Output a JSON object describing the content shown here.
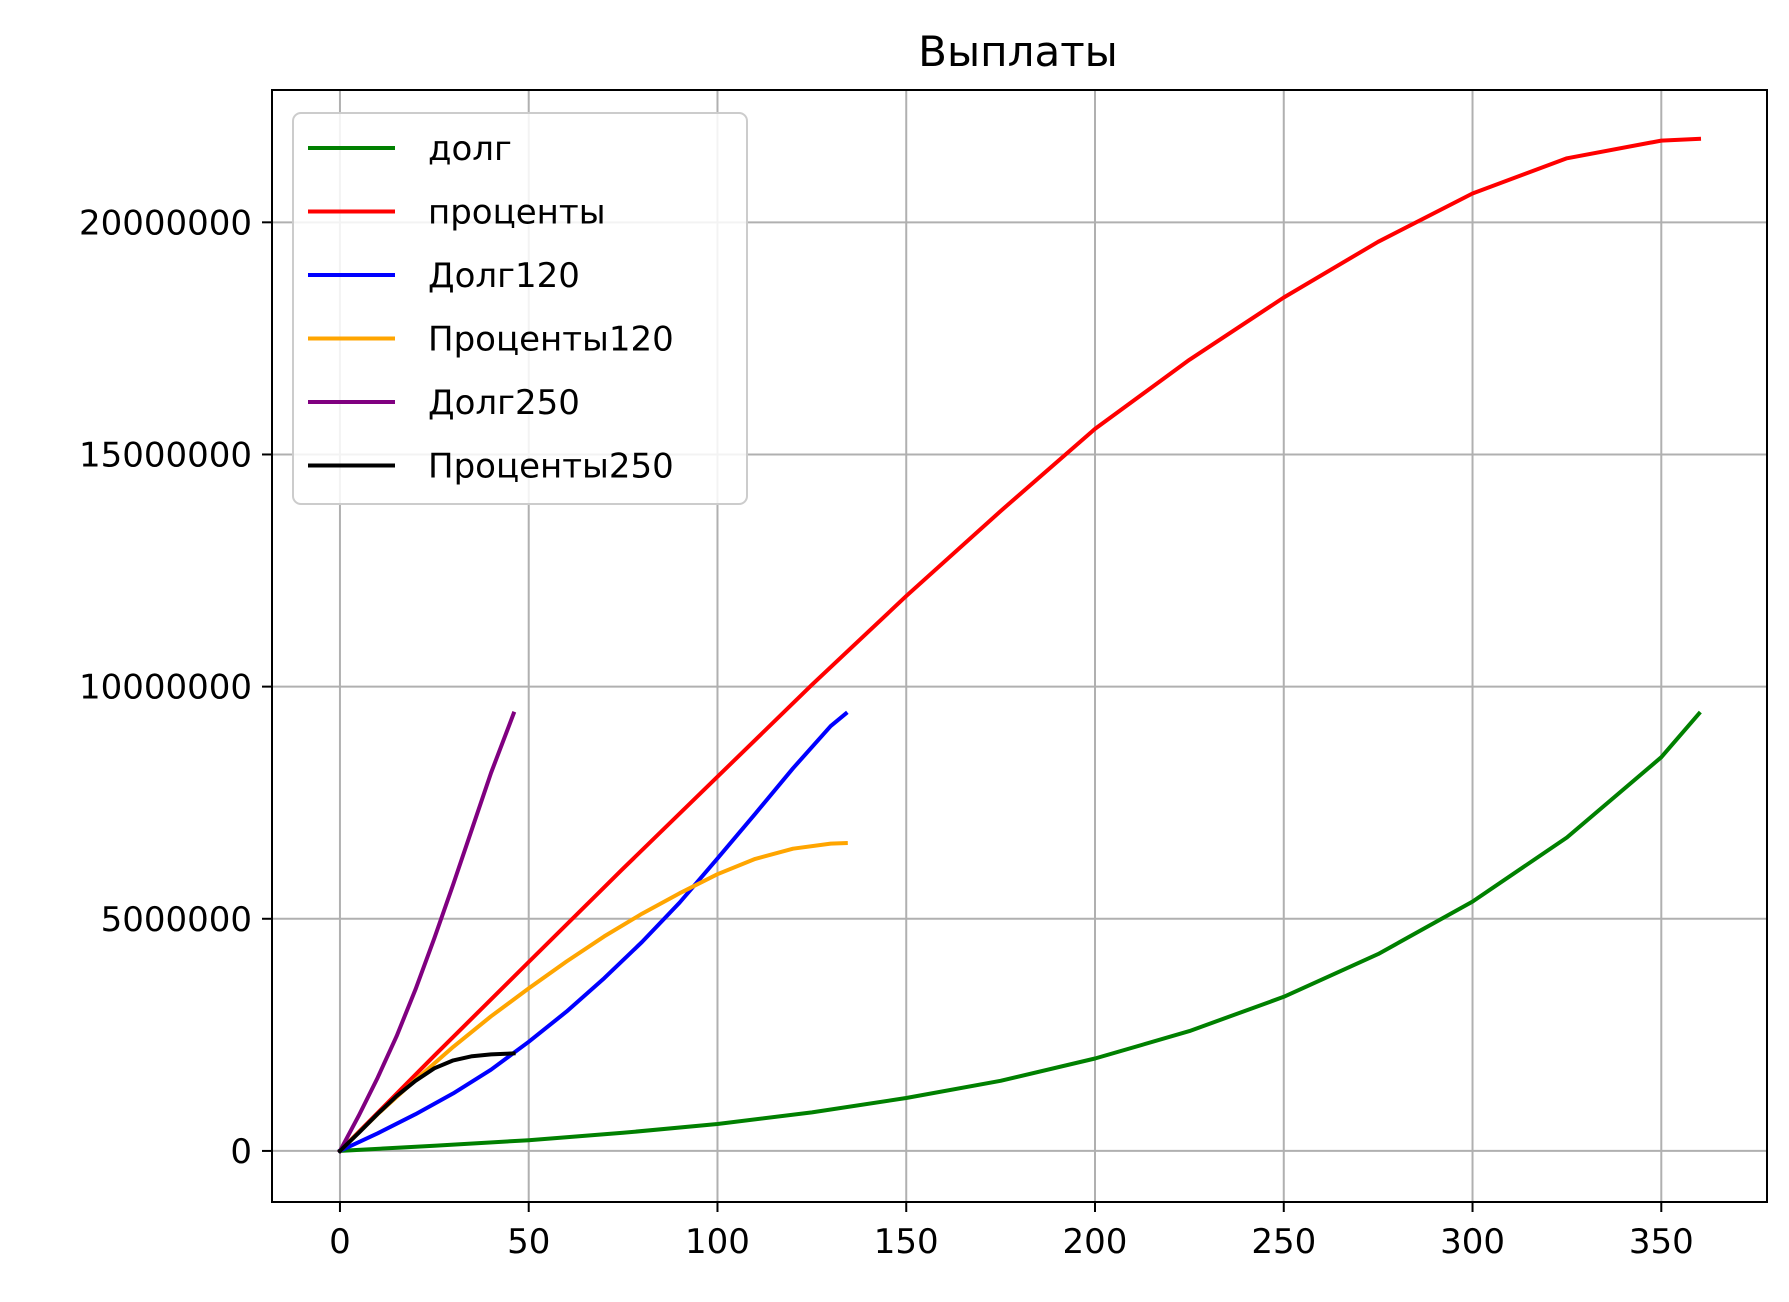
{
  "chart_data": {
    "type": "line",
    "title": "Выплаты",
    "xlabel": "",
    "ylabel": "",
    "xlim": [
      -18,
      378
    ],
    "ylim": [
      -1100000,
      22850000
    ],
    "xticks": [
      0,
      50,
      100,
      150,
      200,
      250,
      300,
      350
    ],
    "yticks": [
      0,
      5000000,
      10000000,
      15000000,
      20000000
    ],
    "xtick_labels": [
      "0",
      "50",
      "100",
      "150",
      "200",
      "250",
      "300",
      "350"
    ],
    "ytick_labels": [
      "0",
      "5000000",
      "10000000",
      "15000000",
      "20000000"
    ],
    "grid": true,
    "legend_position": "upper left",
    "series": [
      {
        "name": "долг",
        "color": "#008000",
        "x": [
          0,
          25,
          50,
          75,
          100,
          125,
          150,
          175,
          200,
          225,
          250,
          275,
          300,
          325,
          350,
          360
        ],
        "y": [
          0,
          110000,
          230000,
          390000,
          580000,
          830000,
          1140000,
          1510000,
          1990000,
          2580000,
          3320000,
          4240000,
          5370000,
          6750000,
          8480000,
          9420000
        ]
      },
      {
        "name": "проценты",
        "color": "#ff0000",
        "x": [
          0,
          25,
          50,
          75,
          100,
          125,
          150,
          175,
          200,
          225,
          250,
          275,
          300,
          325,
          350,
          360
        ],
        "y": [
          0,
          2050000,
          4070000,
          6080000,
          8060000,
          10040000,
          11950000,
          13780000,
          15550000,
          17040000,
          18380000,
          19580000,
          20620000,
          21380000,
          21760000,
          21800000
        ]
      },
      {
        "name": "Долг120",
        "color": "#0000ff",
        "x": [
          0,
          10,
          20,
          30,
          40,
          50,
          60,
          70,
          80,
          90,
          100,
          110,
          120,
          130,
          134
        ],
        "y": [
          0,
          380000,
          790000,
          1240000,
          1750000,
          2350000,
          3000000,
          3720000,
          4500000,
          5350000,
          6300000,
          7260000,
          8240000,
          9150000,
          9420000
        ]
      },
      {
        "name": "Проценты120",
        "color": "#ffa500",
        "x": [
          0,
          10,
          20,
          30,
          40,
          50,
          60,
          70,
          80,
          90,
          100,
          110,
          120,
          130,
          134
        ],
        "y": [
          0,
          790000,
          1530000,
          2240000,
          2900000,
          3500000,
          4080000,
          4620000,
          5110000,
          5550000,
          5960000,
          6290000,
          6510000,
          6620000,
          6630000
        ]
      },
      {
        "name": "Долг250",
        "color": "#800080",
        "x": [
          0,
          5,
          10,
          15,
          20,
          25,
          30,
          35,
          40,
          46
        ],
        "y": [
          0,
          760000,
          1580000,
          2470000,
          3480000,
          4580000,
          5740000,
          6940000,
          8140000,
          9420000
        ]
      },
      {
        "name": "Проценты250",
        "color": "#000000",
        "x": [
          0,
          5,
          10,
          15,
          20,
          25,
          30,
          35,
          40,
          46
        ],
        "y": [
          0,
          390000,
          800000,
          1180000,
          1510000,
          1780000,
          1950000,
          2040000,
          2080000,
          2100000
        ]
      }
    ]
  }
}
